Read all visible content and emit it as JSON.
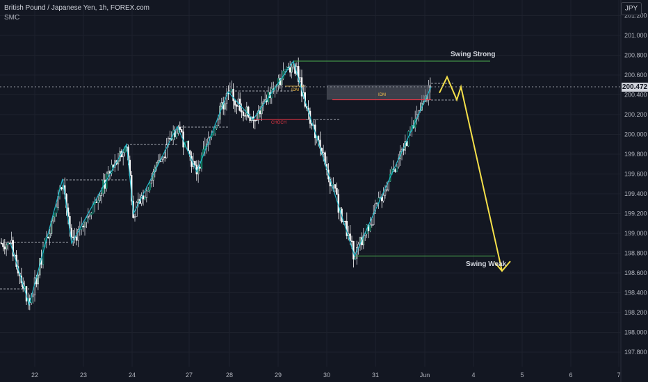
{
  "header": {
    "title": "British Pound / Japanese Yen, 1h, FOREX.com",
    "indicator": "SMC"
  },
  "currency_badge": "JPY",
  "last_price": "200.472",
  "price_axis": [
    "201.200",
    "201.000",
    "200.800",
    "200.600",
    "200.400",
    "200.200",
    "200.000",
    "199.800",
    "199.600",
    "199.400",
    "199.200",
    "199.000",
    "198.800",
    "198.600",
    "198.400",
    "198.200",
    "198.000",
    "197.800"
  ],
  "time_axis": [
    "22",
    "23",
    "24",
    "27",
    "28",
    "29",
    "30",
    "31",
    "Jun",
    "4",
    "5",
    "6",
    "7"
  ],
  "annotations": {
    "swing_strong": "Swing Strong",
    "swing_weak": "Swing Weak",
    "idm_left": "IDM",
    "idm_right": "IDM",
    "choch": "CHOCH"
  },
  "colors": {
    "background": "#131722",
    "bull": "#089981",
    "bull_dark": "#1b5e3f",
    "bear": "#e0e3eb",
    "zigzag": "#22b8c9",
    "projection": "#f5e04a",
    "swing_line": "#4caf50",
    "choch": "#f23645",
    "idm": "#f5c04a"
  },
  "chart_data": {
    "type": "candlestick",
    "symbol": "GBPJPY",
    "interval": "1h",
    "ylim": [
      197.7,
      201.3
    ],
    "y_ticks": [
      197.8,
      198.0,
      198.2,
      198.4,
      198.6,
      198.8,
      199.0,
      199.2,
      199.4,
      199.6,
      199.8,
      200.0,
      200.2,
      200.4,
      200.6,
      200.8,
      201.0,
      201.2
    ],
    "x_categories": [
      "22",
      "23",
      "24",
      "27",
      "28",
      "29",
      "30",
      "31",
      "Jun",
      "4",
      "5",
      "6",
      "7"
    ],
    "zigzag_prices": [
      198.9,
      198.28,
      199.55,
      198.9,
      199.9,
      199.2,
      200.08,
      199.62,
      200.43,
      200.15,
      200.74,
      200.4,
      198.77,
      200.48
    ],
    "levels": {
      "swing_strong": 200.74,
      "swing_weak": 198.77,
      "idm_zone_top": 200.5,
      "idm_zone_bottom": 200.35,
      "choch": 200.15
    },
    "projection_prices": [
      200.42,
      200.58,
      200.35,
      200.48,
      198.62
    ],
    "last_price": 200.472
  }
}
